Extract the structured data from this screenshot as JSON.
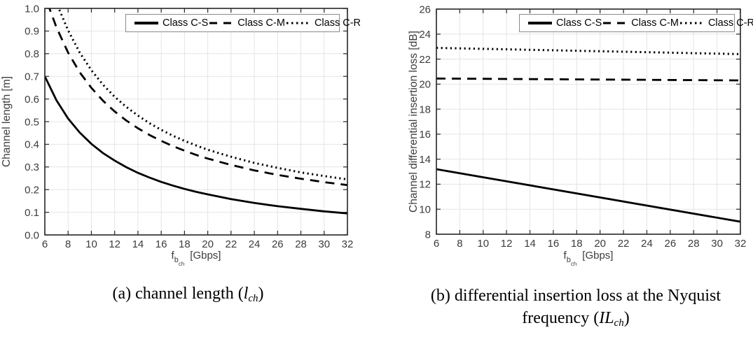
{
  "figure": {
    "panels": [
      {
        "id": "a",
        "x_label": {
          "sym": "f",
          "sub": "b",
          "subsub": "ch",
          "unit": "[Gbps]"
        },
        "caption": {
          "lead": "(a) channel length (",
          "var": "l",
          "sub": "ch",
          "close": ")"
        }
      },
      {
        "id": "b",
        "x_label": {
          "sym": "f",
          "sub": "b",
          "subsub": "ch",
          "unit": "[Gbps]"
        },
        "caption": {
          "line1": "(b) differential insertion loss at the Nyquist",
          "lead": "frequency (",
          "var": "IL",
          "sub": "ch",
          "close": ")"
        }
      }
    ]
  },
  "chart_data": [
    {
      "type": "line",
      "title": "",
      "xlabel": "f_b_ch [Gbps]",
      "ylabel": "Channel length [m]",
      "xlim": [
        6,
        32
      ],
      "ylim": [
        0,
        1
      ],
      "grid": true,
      "legend_position": "top-right-inside-horizontal",
      "xticks": [
        6,
        8,
        10,
        12,
        14,
        16,
        18,
        20,
        22,
        24,
        26,
        28,
        30,
        32
      ],
      "xtick_labels": [
        "6",
        "8",
        "10",
        "12",
        "14",
        "16",
        "18",
        "20",
        "22",
        "24",
        "26",
        "28",
        "30",
        "32"
      ],
      "yticks": [
        0,
        0.1,
        0.2,
        0.3,
        0.4,
        0.5,
        0.6,
        0.7,
        0.8,
        0.9,
        1.0
      ],
      "ytick_labels": [
        "0.0",
        "0.1",
        "0.2",
        "0.3",
        "0.4",
        "0.5",
        "0.6",
        "0.7",
        "0.8",
        "0.9",
        "1.0"
      ],
      "series": [
        {
          "name": "Class C-S",
          "style": "solid",
          "x": [
            6,
            7,
            8,
            9,
            10,
            11,
            12,
            13,
            14,
            15,
            16,
            17,
            18,
            19,
            20,
            22,
            24,
            26,
            28,
            30,
            32
          ],
          "y": [
            0.7,
            0.594,
            0.514,
            0.452,
            0.402,
            0.361,
            0.328,
            0.299,
            0.274,
            0.253,
            0.234,
            0.218,
            0.203,
            0.19,
            0.179,
            0.158,
            0.141,
            0.127,
            0.115,
            0.104,
            0.095
          ]
        },
        {
          "name": "Class C-M",
          "style": "dashed",
          "x": [
            6,
            6.4,
            7,
            8,
            9,
            10,
            11,
            12,
            13,
            14,
            15,
            16,
            17,
            18,
            19,
            20,
            22,
            24,
            26,
            28,
            30,
            32
          ],
          "y": [
            1.09,
            1.0,
            0.916,
            0.805,
            0.718,
            0.649,
            0.592,
            0.545,
            0.505,
            0.471,
            0.441,
            0.415,
            0.392,
            0.372,
            0.353,
            0.337,
            0.309,
            0.285,
            0.265,
            0.248,
            0.233,
            0.22
          ]
        },
        {
          "name": "Class C-R",
          "style": "dotted",
          "x": [
            6.6,
            7.2,
            8,
            9,
            10,
            11,
            12,
            13,
            14,
            15,
            16,
            17,
            18,
            19,
            20,
            22,
            24,
            26,
            28,
            30,
            32
          ],
          "y": [
            1.09,
            1.0,
            0.903,
            0.805,
            0.727,
            0.663,
            0.61,
            0.565,
            0.527,
            0.493,
            0.464,
            0.438,
            0.415,
            0.395,
            0.376,
            0.345,
            0.318,
            0.296,
            0.276,
            0.26,
            0.245
          ]
        }
      ]
    },
    {
      "type": "line",
      "title": "",
      "xlabel": "f_b_ch [Gbps]",
      "ylabel": "Channel differential insertion loss [dB]",
      "xlim": [
        6,
        32
      ],
      "ylim": [
        8,
        26
      ],
      "grid": true,
      "legend_position": "top-right-inside-horizontal",
      "xticks": [
        6,
        8,
        10,
        12,
        14,
        16,
        18,
        20,
        22,
        24,
        26,
        28,
        30,
        32
      ],
      "xtick_labels": [
        "6",
        "8",
        "10",
        "12",
        "14",
        "16",
        "18",
        "20",
        "22",
        "24",
        "26",
        "28",
        "30",
        "32"
      ],
      "yticks": [
        8,
        10,
        12,
        14,
        16,
        18,
        20,
        22,
        24,
        26
      ],
      "ytick_labels": [
        "8",
        "10",
        "12",
        "14",
        "16",
        "18",
        "20",
        "22",
        "24",
        "26"
      ],
      "series": [
        {
          "name": "Class C-S",
          "style": "solid",
          "x": [
            6,
            32
          ],
          "y": [
            13.2,
            9.0
          ]
        },
        {
          "name": "Class C-M",
          "style": "dashed",
          "x": [
            6,
            32
          ],
          "y": [
            20.45,
            20.3
          ]
        },
        {
          "name": "Class C-R",
          "style": "dotted",
          "x": [
            6,
            32
          ],
          "y": [
            22.9,
            22.4
          ]
        }
      ]
    }
  ]
}
